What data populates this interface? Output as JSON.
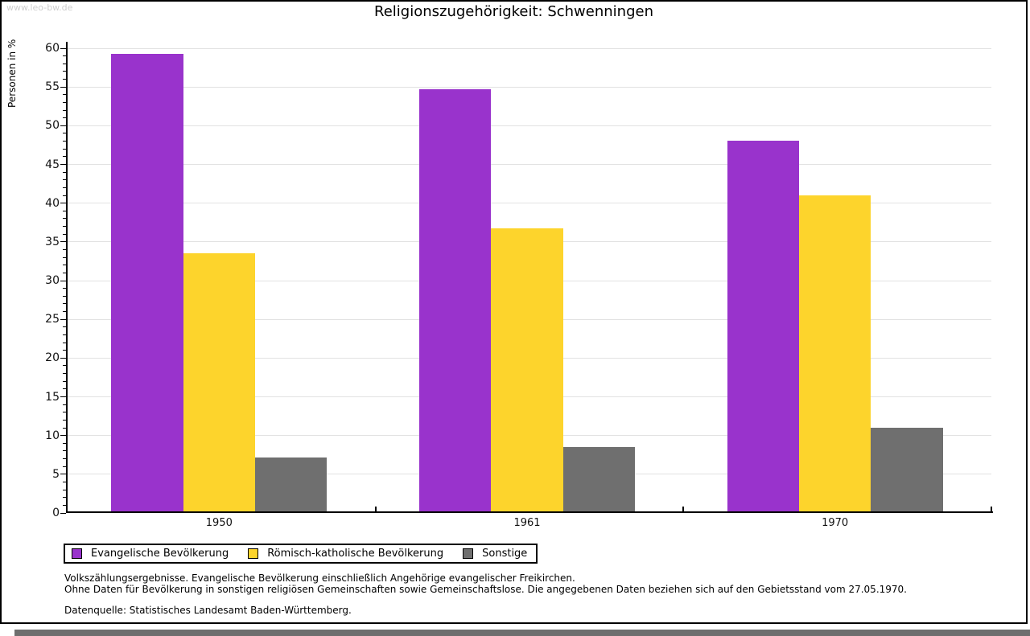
{
  "watermark": "www.leo-bw.de",
  "chart_data": {
    "type": "bar",
    "title": "Religionszugehörigkeit: Schwenningen",
    "ylabel": "Personen in %",
    "xlabel": "",
    "ylim": [
      0,
      60
    ],
    "ytick_step": 5,
    "yminor_step": 1,
    "grid": true,
    "legend_position": "bottom",
    "categories": [
      "1950",
      "1961",
      "1970"
    ],
    "series": [
      {
        "name": "Evangelische Bevölkerung",
        "color": "#9933cc",
        "values": [
          59.3,
          54.7,
          48.1
        ]
      },
      {
        "name": "Römisch-katholische Bevölkerung",
        "color": "#fdd42c",
        "values": [
          33.5,
          36.7,
          41.0
        ]
      },
      {
        "name": "Sonstige",
        "color": "#6f6f6f",
        "values": [
          7.2,
          8.5,
          11.0
        ]
      }
    ]
  },
  "footnotes": {
    "line1": "Volkszählungsergebnisse. Evangelische Bevölkerung einschließlich Angehörige evangelischer Freikirchen.",
    "line2": "Ohne Daten für Bevölkerung in sonstigen religiösen Gemeinschaften sowie Gemeinschaftslose. Die angegebenen Daten beziehen sich auf den Gebietsstand vom 27.05.1970.",
    "source": "Datenquelle: Statistisches Landesamt Baden-Württemberg."
  }
}
